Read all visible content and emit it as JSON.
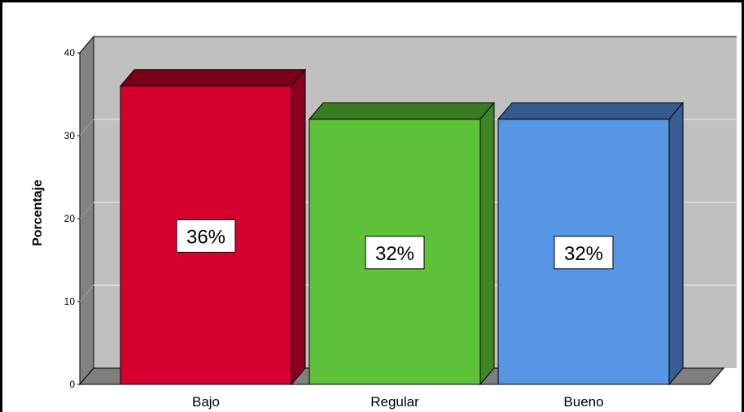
{
  "chart_data": {
    "type": "bar",
    "categories": [
      "Bajo",
      "Regular",
      "Bueno"
    ],
    "values": [
      36,
      32,
      32
    ],
    "data_labels": [
      "36%",
      "32%",
      "32%"
    ],
    "ylabel": "Porcentaje",
    "xlabel": "",
    "ylim": [
      0,
      40
    ],
    "yticks": [
      "0",
      "10",
      "20",
      "30",
      "40"
    ],
    "grid": true,
    "style": "3d",
    "colors": {
      "bars": [
        "#d6002f",
        "#5dc13a",
        "#5596e5"
      ],
      "bar_tops": [
        "#7a0019",
        "#3a7a22",
        "#355a8c"
      ],
      "bar_sides": [
        "#8a001f",
        "#3f8526",
        "#365e93"
      ],
      "wall": "#c0c0c0",
      "side_wall": "#828282",
      "floor": "#7f7f7f",
      "gridline": "#e0e0e0"
    }
  }
}
